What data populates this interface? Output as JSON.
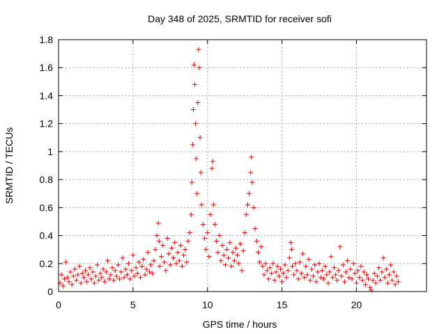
{
  "chart_data": {
    "type": "scatter",
    "title": "Day 348 of 2025, SRMTID for receiver sofi",
    "xlabel": "GPS time / hours",
    "ylabel": "SRMTID / TECUs",
    "xlim": [
      0,
      24.7
    ],
    "ylim": [
      0,
      1.8
    ],
    "xticks": [
      0,
      5,
      10,
      15,
      20
    ],
    "yticks": [
      0,
      0.2,
      0.4,
      0.6,
      0.8,
      1,
      1.2,
      1.4,
      1.6,
      1.8
    ],
    "xtick_labels": [
      "0",
      "5",
      "10",
      "15",
      "20"
    ],
    "ytick_labels": [
      "0",
      "0.2",
      "0.4",
      "0.6",
      "0.8",
      "1",
      "1.2",
      "1.4",
      "1.6",
      "1.8"
    ],
    "grid": true,
    "marker": "+",
    "color": "#e00000",
    "series": [
      {
        "name": "SRMTID",
        "points": [
          [
            0.1,
            0.06
          ],
          [
            0.2,
            0.12
          ],
          [
            0.3,
            0.04
          ],
          [
            0.4,
            0.09
          ],
          [
            0.5,
            0.21
          ],
          [
            0.6,
            0.1
          ],
          [
            0.7,
            0.07
          ],
          [
            0.8,
            0.14
          ],
          [
            0.9,
            0.05
          ],
          [
            1.0,
            0.11
          ],
          [
            1.1,
            0.16
          ],
          [
            1.2,
            0.08
          ],
          [
            1.3,
            0.12
          ],
          [
            1.4,
            0.18
          ],
          [
            1.5,
            0.06
          ],
          [
            1.6,
            0.13
          ],
          [
            1.7,
            0.1
          ],
          [
            1.8,
            0.15
          ],
          [
            1.9,
            0.07
          ],
          [
            2.0,
            0.12
          ],
          [
            2.1,
            0.17
          ],
          [
            2.2,
            0.09
          ],
          [
            2.3,
            0.14
          ],
          [
            2.4,
            0.06
          ],
          [
            2.5,
            0.11
          ],
          [
            2.6,
            0.19
          ],
          [
            2.7,
            0.08
          ],
          [
            2.8,
            0.13
          ],
          [
            2.9,
            0.1
          ],
          [
            3.0,
            0.16
          ],
          [
            3.1,
            0.07
          ],
          [
            3.2,
            0.14
          ],
          [
            3.3,
            0.22
          ],
          [
            3.4,
            0.09
          ],
          [
            3.5,
            0.12
          ],
          [
            3.6,
            0.17
          ],
          [
            3.7,
            0.08
          ],
          [
            3.8,
            0.15
          ],
          [
            3.9,
            0.11
          ],
          [
            4.0,
            0.19
          ],
          [
            4.1,
            0.09
          ],
          [
            4.2,
            0.14
          ],
          [
            4.3,
            0.24
          ],
          [
            4.4,
            0.1
          ],
          [
            4.5,
            0.16
          ],
          [
            4.6,
            0.12
          ],
          [
            4.7,
            0.2
          ],
          [
            4.8,
            0.09
          ],
          [
            4.9,
            0.15
          ],
          [
            5.0,
            0.26
          ],
          [
            5.1,
            0.11
          ],
          [
            5.2,
            0.17
          ],
          [
            5.3,
            0.13
          ],
          [
            5.4,
            0.21
          ],
          [
            5.5,
            0.1
          ],
          [
            5.6,
            0.18
          ],
          [
            5.7,
            0.23
          ],
          [
            5.8,
            0.12
          ],
          [
            5.9,
            0.16
          ],
          [
            6.0,
            0.28
          ],
          [
            6.1,
            0.14
          ],
          [
            6.2,
            0.19
          ],
          [
            6.3,
            0.13
          ],
          [
            6.4,
            0.22
          ],
          [
            6.5,
            0.3
          ],
          [
            6.6,
            0.4
          ],
          [
            6.7,
            0.49
          ],
          [
            6.75,
            0.36
          ],
          [
            6.8,
            0.18
          ],
          [
            6.9,
            0.25
          ],
          [
            7.0,
            0.33
          ],
          [
            7.1,
            0.21
          ],
          [
            7.2,
            0.15
          ],
          [
            7.3,
            0.38
          ],
          [
            7.4,
            0.27
          ],
          [
            7.5,
            0.19
          ],
          [
            7.6,
            0.31
          ],
          [
            7.7,
            0.24
          ],
          [
            7.8,
            0.35
          ],
          [
            7.9,
            0.2
          ],
          [
            8.0,
            0.28
          ],
          [
            8.1,
            0.22
          ],
          [
            8.2,
            0.33
          ],
          [
            8.3,
            0.18
          ],
          [
            8.4,
            0.26
          ],
          [
            8.5,
            0.3
          ],
          [
            8.6,
            0.21
          ],
          [
            8.7,
            0.36
          ],
          [
            8.8,
            0.42
          ],
          [
            8.9,
            0.55
          ],
          [
            8.95,
            0.78
          ],
          [
            9.0,
            1.05
          ],
          [
            9.05,
            1.3
          ],
          [
            9.1,
            1.62
          ],
          [
            9.15,
            1.48
          ],
          [
            9.2,
            1.2
          ],
          [
            9.25,
            0.95
          ],
          [
            9.3,
            0.7
          ],
          [
            9.35,
            1.35
          ],
          [
            9.4,
            1.73
          ],
          [
            9.45,
            1.6
          ],
          [
            9.5,
            1.1
          ],
          [
            9.55,
            0.85
          ],
          [
            9.6,
            0.62
          ],
          [
            9.7,
            0.48
          ],
          [
            9.8,
            0.38
          ],
          [
            9.9,
            0.3
          ],
          [
            10.0,
            0.42
          ],
          [
            10.1,
            0.25
          ],
          [
            10.2,
            0.55
          ],
          [
            10.3,
            0.88
          ],
          [
            10.35,
            0.93
          ],
          [
            10.4,
            0.62
          ],
          [
            10.5,
            0.48
          ],
          [
            10.6,
            0.36
          ],
          [
            10.7,
            0.28
          ],
          [
            10.8,
            0.4
          ],
          [
            10.9,
            0.22
          ],
          [
            11.0,
            0.33
          ],
          [
            11.1,
            0.26
          ],
          [
            11.2,
            0.19
          ],
          [
            11.3,
            0.3
          ],
          [
            11.4,
            0.24
          ],
          [
            11.5,
            0.35
          ],
          [
            11.6,
            0.18
          ],
          [
            11.7,
            0.28
          ],
          [
            11.8,
            0.22
          ],
          [
            11.9,
            0.31
          ],
          [
            12.0,
            0.26
          ],
          [
            12.1,
            0.2
          ],
          [
            12.2,
            0.34
          ],
          [
            12.3,
            0.15
          ],
          [
            12.4,
            0.29
          ],
          [
            12.5,
            0.42
          ],
          [
            12.6,
            0.55
          ],
          [
            12.7,
            0.62
          ],
          [
            12.8,
            0.7
          ],
          [
            12.9,
            0.85
          ],
          [
            12.95,
            0.96
          ],
          [
            13.0,
            0.78
          ],
          [
            13.1,
            0.6
          ],
          [
            13.2,
            0.45
          ],
          [
            13.3,
            0.36
          ],
          [
            13.4,
            0.28
          ],
          [
            13.5,
            0.21
          ],
          [
            13.6,
            0.32
          ],
          [
            13.7,
            0.18
          ],
          [
            13.8,
            0.12
          ],
          [
            13.9,
            0.2
          ],
          [
            14.0,
            0.15
          ],
          [
            14.1,
            0.09
          ],
          [
            14.2,
            0.17
          ],
          [
            14.3,
            0.13
          ],
          [
            14.4,
            0.2
          ],
          [
            14.5,
            0.08
          ],
          [
            14.6,
            0.14
          ],
          [
            14.7,
            0.18
          ],
          [
            14.8,
            0.11
          ],
          [
            14.9,
            0.16
          ],
          [
            15.0,
            0.07
          ],
          [
            15.1,
            0.13
          ],
          [
            15.2,
            0.19
          ],
          [
            15.3,
            0.1
          ],
          [
            15.4,
            0.15
          ],
          [
            15.5,
            0.24
          ],
          [
            15.6,
            0.35
          ],
          [
            15.65,
            0.3
          ],
          [
            15.7,
            0.18
          ],
          [
            15.8,
            0.12
          ],
          [
            15.9,
            0.2
          ],
          [
            16.0,
            0.15
          ],
          [
            16.1,
            0.09
          ],
          [
            16.2,
            0.21
          ],
          [
            16.3,
            0.13
          ],
          [
            16.4,
            0.27
          ],
          [
            16.5,
            0.1
          ],
          [
            16.6,
            0.18
          ],
          [
            16.7,
            0.12
          ],
          [
            16.8,
            0.23
          ],
          [
            16.9,
            0.08
          ],
          [
            17.0,
            0.16
          ],
          [
            17.1,
            0.11
          ],
          [
            17.2,
            0.19
          ],
          [
            17.3,
            0.07
          ],
          [
            17.4,
            0.14
          ],
          [
            17.5,
            0.2
          ],
          [
            17.6,
            0.1
          ],
          [
            17.7,
            0.15
          ],
          [
            17.8,
            0.09
          ],
          [
            17.9,
            0.18
          ],
          [
            18.0,
            0.12
          ],
          [
            18.1,
            0.06
          ],
          [
            18.2,
            0.14
          ],
          [
            18.3,
            0.25
          ],
          [
            18.4,
            0.1
          ],
          [
            18.5,
            0.17
          ],
          [
            18.6,
            0.12
          ],
          [
            18.7,
            0.08
          ],
          [
            18.8,
            0.15
          ],
          [
            18.9,
            0.32
          ],
          [
            19.0,
            0.11
          ],
          [
            19.1,
            0.19
          ],
          [
            19.2,
            0.07
          ],
          [
            19.3,
            0.14
          ],
          [
            19.4,
            0.22
          ],
          [
            19.5,
            0.1
          ],
          [
            19.6,
            0.16
          ],
          [
            19.7,
            0.09
          ],
          [
            19.8,
            0.2
          ],
          [
            19.9,
            0.13
          ],
          [
            20.0,
            0.06
          ],
          [
            20.1,
            0.15
          ],
          [
            20.2,
            0.1
          ],
          [
            20.3,
            0.18
          ],
          [
            20.4,
            0.08
          ],
          [
            20.5,
            0.14
          ],
          [
            20.6,
            0.05
          ],
          [
            20.7,
            0.12
          ],
          [
            20.8,
            0.09
          ],
          [
            20.9,
            0.03
          ],
          [
            21.0,
            0.01
          ],
          [
            21.1,
            0.08
          ],
          [
            21.2,
            0.13
          ],
          [
            21.3,
            0.06
          ],
          [
            21.4,
            0.11
          ],
          [
            21.5,
            0.17
          ],
          [
            21.6,
            0.08
          ],
          [
            21.7,
            0.14
          ],
          [
            21.8,
            0.24
          ],
          [
            21.9,
            0.1
          ],
          [
            22.0,
            0.16
          ],
          [
            22.1,
            0.06
          ],
          [
            22.2,
            0.12
          ],
          [
            22.3,
            0.19
          ],
          [
            22.4,
            0.08
          ],
          [
            22.5,
            0.14
          ],
          [
            22.6,
            0.05
          ],
          [
            22.7,
            0.11
          ],
          [
            22.8,
            0.07
          ]
        ]
      }
    ]
  }
}
